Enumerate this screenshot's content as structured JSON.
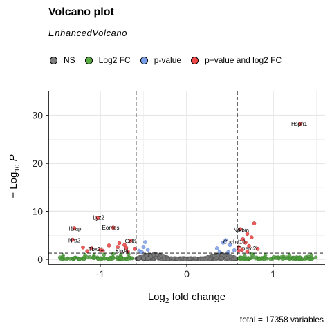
{
  "chart_data": {
    "type": "scatter",
    "title": "Volcano plot",
    "subtitle": "EnhancedVolcano",
    "caption": "total = 17358 variables",
    "xlabel": "Log2 fold change",
    "ylabel": "-Log10 P",
    "xlim": [
      -1.6,
      1.6
    ],
    "ylim": [
      -1,
      35
    ],
    "x_ticks": [
      -1,
      0,
      1
    ],
    "y_ticks": [
      0,
      10,
      20,
      30
    ],
    "thresholds": {
      "fc": [
        -0.585,
        0.585
      ],
      "p": 1.3
    },
    "legend": [
      {
        "name": "NS",
        "color": "#808080"
      },
      {
        "name": "Log2 FC",
        "color": "#5aac44"
      },
      {
        "name": "p-value",
        "color": "#7b9ee8"
      },
      {
        "name": "p−value and log2 FC",
        "color": "#ee4a4a"
      }
    ],
    "labeled_points": [
      {
        "label": "Hsph1",
        "x": 1.3,
        "y": 28.2
      },
      {
        "label": "Lyz2",
        "x": -1.02,
        "y": 8.7
      },
      {
        "label": "Il1rap",
        "x": -1.3,
        "y": 6.4
      },
      {
        "label": "Eomes",
        "x": -0.88,
        "y": 6.6
      },
      {
        "label": "Nfkbia",
        "x": 0.63,
        "y": 6.1
      },
      {
        "label": "Nrp2",
        "x": -1.3,
        "y": 4.0
      },
      {
        "label": "Ccl6",
        "x": -0.65,
        "y": 3.8
      },
      {
        "label": "Chchd10",
        "x": 0.55,
        "y": 3.7
      },
      {
        "label": "Tbx21",
        "x": -1.05,
        "y": 2.2
      },
      {
        "label": "Klrd4",
        "x": -0.75,
        "y": 1.8
      },
      {
        "label": "Tmem2l",
        "x": 0.7,
        "y": 2.3
      }
    ],
    "red_points": [
      {
        "x": -1.3,
        "y": 6.5
      },
      {
        "x": -1.32,
        "y": 4.1
      },
      {
        "x": -1.2,
        "y": 2.5
      },
      {
        "x": -1.1,
        "y": 2.3
      },
      {
        "x": -1.03,
        "y": 8.6
      },
      {
        "x": -1.0,
        "y": 2.0
      },
      {
        "x": -0.97,
        "y": 1.8
      },
      {
        "x": -0.9,
        "y": 2.9
      },
      {
        "x": -0.85,
        "y": 6.6
      },
      {
        "x": -0.8,
        "y": 2.6
      },
      {
        "x": -0.78,
        "y": 3.4
      },
      {
        "x": -0.72,
        "y": 3.0
      },
      {
        "x": -0.7,
        "y": 2.4
      },
      {
        "x": -0.68,
        "y": 1.6
      },
      {
        "x": -0.65,
        "y": 3.9
      },
      {
        "x": -0.6,
        "y": 2.2
      },
      {
        "x": -1.15,
        "y": 1.7
      },
      {
        "x": 1.31,
        "y": 28.2
      },
      {
        "x": 0.62,
        "y": 6.3
      },
      {
        "x": 0.65,
        "y": 4.2
      },
      {
        "x": 0.68,
        "y": 3.5
      },
      {
        "x": 0.6,
        "y": 2.6
      },
      {
        "x": 0.72,
        "y": 2.8
      },
      {
        "x": 0.75,
        "y": 4.6
      },
      {
        "x": 0.7,
        "y": 5.3
      },
      {
        "x": 0.78,
        "y": 7.5
      },
      {
        "x": 0.64,
        "y": 2.0
      },
      {
        "x": 0.82,
        "y": 2.2
      },
      {
        "x": 0.7,
        "y": 1.6
      },
      {
        "x": 0.6,
        "y": 1.8
      }
    ],
    "blue_points": [
      {
        "x": -0.55,
        "y": 1.8
      },
      {
        "x": -0.5,
        "y": 2.6
      },
      {
        "x": -0.48,
        "y": 3.6
      },
      {
        "x": -0.45,
        "y": 2.0
      },
      {
        "x": -0.52,
        "y": 1.5
      },
      {
        "x": 0.35,
        "y": 2.3
      },
      {
        "x": 0.42,
        "y": 3.5
      },
      {
        "x": 0.45,
        "y": 4.0
      },
      {
        "x": 0.5,
        "y": 3.0
      },
      {
        "x": 0.38,
        "y": 1.6
      },
      {
        "x": 0.55,
        "y": 1.9
      },
      {
        "x": 0.48,
        "y": 1.5
      }
    ]
  }
}
